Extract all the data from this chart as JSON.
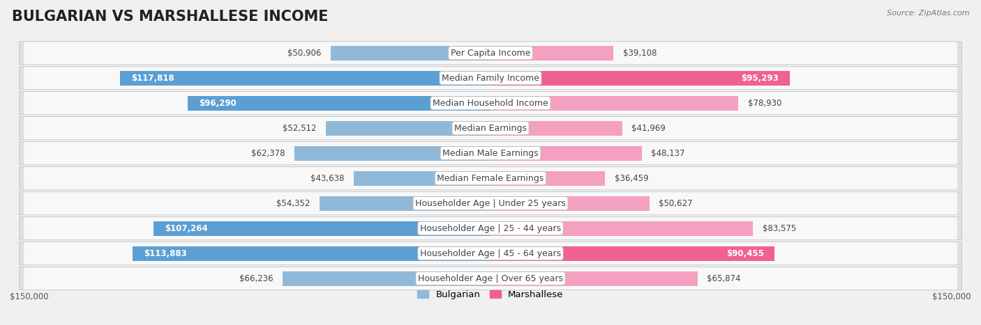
{
  "title": "BULGARIAN VS MARSHALLESE INCOME",
  "source": "Source: ZipAtlas.com",
  "categories": [
    "Per Capita Income",
    "Median Family Income",
    "Median Household Income",
    "Median Earnings",
    "Median Male Earnings",
    "Median Female Earnings",
    "Householder Age | Under 25 years",
    "Householder Age | 25 - 44 years",
    "Householder Age | 45 - 64 years",
    "Householder Age | Over 65 years"
  ],
  "bulgarian_values": [
    50906,
    117818,
    96290,
    52512,
    62378,
    43638,
    54352,
    107264,
    113883,
    66236
  ],
  "marshallese_values": [
    39108,
    95293,
    78930,
    41969,
    48137,
    36459,
    50627,
    83575,
    90455,
    65874
  ],
  "bulgarian_labels": [
    "$50,906",
    "$117,818",
    "$96,290",
    "$52,512",
    "$62,378",
    "$43,638",
    "$54,352",
    "$107,264",
    "$113,883",
    "$66,236"
  ],
  "marshallese_labels": [
    "$39,108",
    "$95,293",
    "$78,930",
    "$41,969",
    "$48,137",
    "$36,459",
    "$50,627",
    "$83,575",
    "$90,455",
    "$65,874"
  ],
  "bulgarian_inside": [
    false,
    true,
    true,
    false,
    false,
    false,
    false,
    true,
    true,
    false
  ],
  "marshallese_inside": [
    false,
    true,
    false,
    false,
    false,
    false,
    false,
    false,
    true,
    false
  ],
  "max_value": 150000,
  "bulgarian_color": "#90b8d8",
  "marshallese_color": "#f4a0c0",
  "bulgarian_color_sat": "#5b9fd4",
  "marshallese_color_sat": "#f06090",
  "bg_color": "#f0f0f0",
  "row_bg": "#e8e8e8",
  "row_inner_bg": "#fafafa",
  "title_fontsize": 15,
  "label_fontsize": 9,
  "value_fontsize": 8.5,
  "legend_fontsize": 9.5,
  "axis_fontsize": 8.5
}
